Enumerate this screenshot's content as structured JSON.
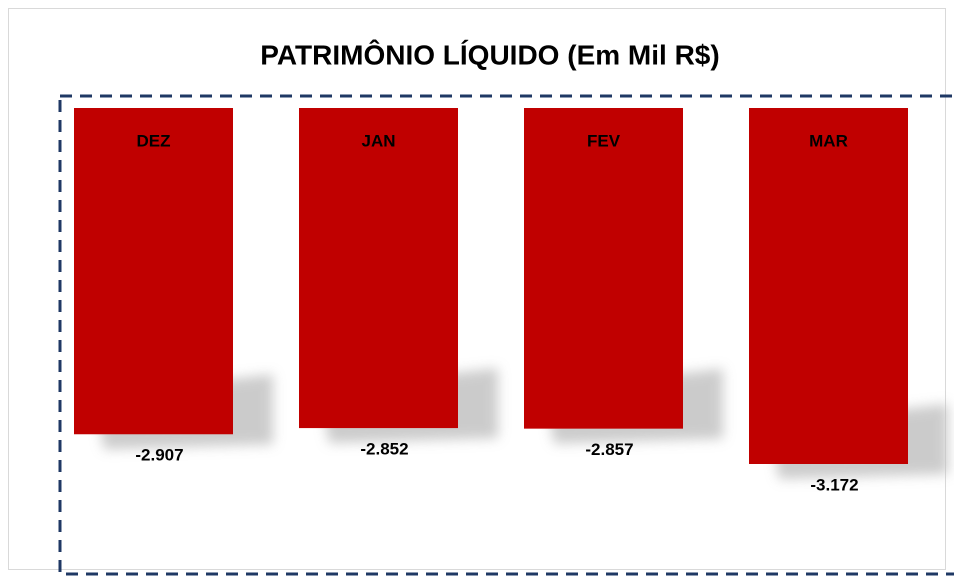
{
  "chart_data": {
    "type": "bar",
    "title": "PATRIMÔNIO LÍQUIDO (Em Mil R$)",
    "categories": [
      "DEZ",
      "JAN",
      "FEV",
      "MAR"
    ],
    "values": [
      -2907,
      -2852,
      -2857,
      -3172
    ],
    "value_labels": [
      "-2.907",
      "-2.852",
      "-2.857",
      "-3.172"
    ],
    "color": "#c00000"
  }
}
